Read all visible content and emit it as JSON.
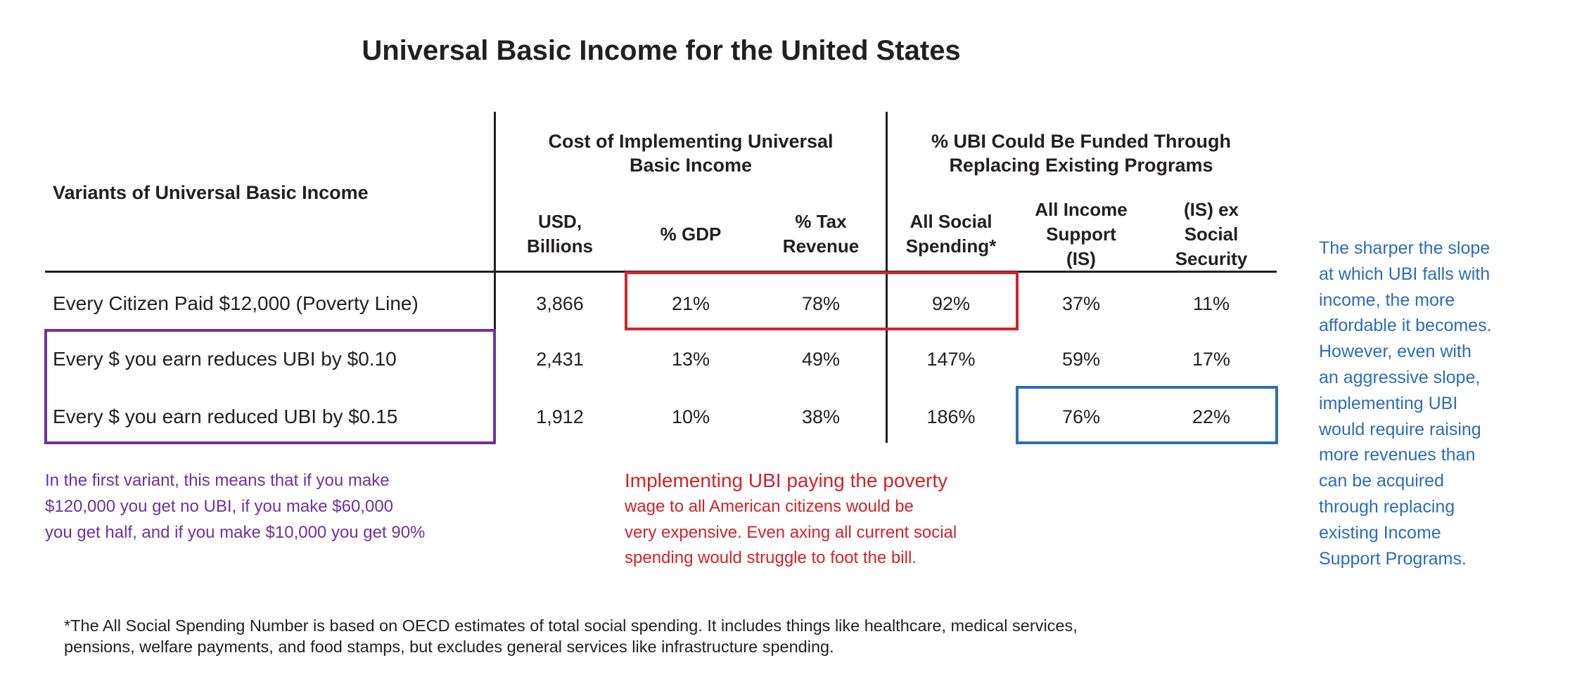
{
  "title": "Universal Basic Income for the United States",
  "colors": {
    "purple": "#7030a0",
    "red": "#d2232a",
    "blue": "#2a6eb8",
    "text": "#231f20"
  },
  "table": {
    "row_header": "Variants of Universal Basic Income",
    "groups": [
      {
        "lines": [
          "Cost of Implementing Universal",
          "Basic Income"
        ]
      },
      {
        "lines": [
          "% UBI Could Be Funded Through",
          "Replacing Existing Programs"
        ]
      }
    ],
    "columns": [
      {
        "lines": [
          "USD,",
          "Billions"
        ]
      },
      {
        "lines": [
          "% GDP"
        ]
      },
      {
        "lines": [
          "% Tax",
          "Revenue"
        ]
      },
      {
        "lines": [
          "All Social",
          "Spending*"
        ]
      },
      {
        "lines": [
          "All Income",
          "Support",
          "(IS)"
        ]
      },
      {
        "lines": [
          "(IS) ex",
          "Social",
          "Security"
        ]
      }
    ],
    "rows": [
      {
        "label": "Every Citizen Paid $12,000 (Poverty Line)",
        "values": [
          "3,866",
          "21%",
          "78%",
          "92%",
          "37%",
          "11%"
        ]
      },
      {
        "label": "Every $ you earn reduces UBI by $0.10",
        "values": [
          "2,431",
          "13%",
          "49%",
          "147%",
          "59%",
          "17%"
        ]
      },
      {
        "label": "Every $ you earn reduced UBI by $0.15",
        "values": [
          "1,912",
          "10%",
          "38%",
          "186%",
          "76%",
          "22%"
        ]
      }
    ]
  },
  "notes": {
    "purple": [
      "In the first variant, this means that if you make",
      "$120,000 you get no UBI, if you make $60,000",
      "you get half, and if you make $10,000 you get 90%"
    ],
    "red": [
      "Implementing UBI paying the poverty",
      "wage to all American citizens would be",
      "very expensive. Even axing all current social",
      "spending would struggle to foot the bill."
    ],
    "blue": [
      "The sharper the slope",
      "at which UBI falls with",
      "income, the more",
      "affordable it becomes.",
      "However, even with",
      "an aggressive slope,",
      "implementing UBI",
      "would require raising",
      "more revenues than",
      "can be acquired",
      "through replacing",
      "existing Income",
      "Support Programs."
    ]
  },
  "footnote": [
    "*The All Social Spending Number is based on OECD estimates of total social spending. It includes things like healthcare, medical services,",
    "pensions, welfare payments, and food stamps, but excludes general services like infrastructure spending."
  ]
}
